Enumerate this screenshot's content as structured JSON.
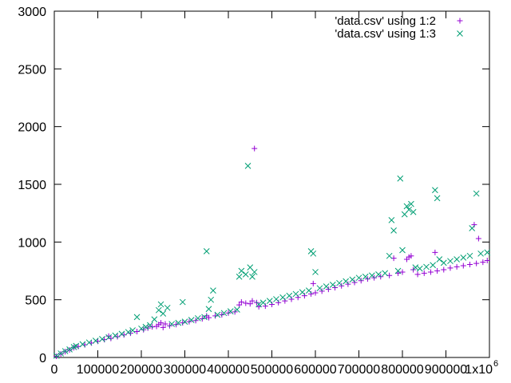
{
  "chart_data": {
    "type": "scatter",
    "title": "",
    "xlabel": "",
    "ylabel": "",
    "xlim": [
      0,
      1000000
    ],
    "ylim": [
      0,
      3000
    ],
    "grid": false,
    "legend_position": "top-right",
    "x_ticks": [
      0,
      100000,
      200000,
      300000,
      400000,
      500000,
      600000,
      700000,
      800000,
      900000,
      1000000
    ],
    "x_tick_labels": [
      "0",
      "100000",
      "200000",
      "300000",
      "400000",
      "500000",
      "600000",
      "700000",
      "800000",
      "900000",
      "1x10"
    ],
    "x_tick_label_last_exponent": "6",
    "y_ticks": [
      0,
      500,
      1000,
      1500,
      2000,
      2500,
      3000
    ],
    "y_tick_labels": [
      "0",
      "500",
      "1000",
      "1500",
      "2000",
      "2500",
      "3000"
    ],
    "series": [
      {
        "name": "'data.csv' using 1:2",
        "marker": "plus",
        "color": "#9400d3",
        "points": [
          [
            5000,
            10
          ],
          [
            15000,
            30
          ],
          [
            25000,
            50
          ],
          [
            35000,
            65
          ],
          [
            45000,
            85
          ],
          [
            55000,
            95
          ],
          [
            70000,
            110
          ],
          [
            85000,
            125
          ],
          [
            100000,
            140
          ],
          [
            115000,
            155
          ],
          [
            125000,
            185
          ],
          [
            130000,
            165
          ],
          [
            145000,
            180
          ],
          [
            160000,
            195
          ],
          [
            175000,
            210
          ],
          [
            190000,
            225
          ],
          [
            205000,
            240
          ],
          [
            215000,
            255
          ],
          [
            225000,
            265
          ],
          [
            235000,
            270
          ],
          [
            240000,
            285
          ],
          [
            245000,
            300
          ],
          [
            250000,
            260
          ],
          [
            255000,
            290
          ],
          [
            265000,
            275
          ],
          [
            280000,
            285
          ],
          [
            295000,
            300
          ],
          [
            310000,
            310
          ],
          [
            325000,
            320
          ],
          [
            340000,
            335
          ],
          [
            350000,
            360
          ],
          [
            355000,
            345
          ],
          [
            370000,
            360
          ],
          [
            385000,
            370
          ],
          [
            400000,
            385
          ],
          [
            415000,
            395
          ],
          [
            425000,
            455
          ],
          [
            430000,
            480
          ],
          [
            440000,
            470
          ],
          [
            450000,
            465
          ],
          [
            455000,
            490
          ],
          [
            460000,
            1810
          ],
          [
            465000,
            475
          ],
          [
            470000,
            440
          ],
          [
            485000,
            445
          ],
          [
            500000,
            460
          ],
          [
            515000,
            475
          ],
          [
            530000,
            490
          ],
          [
            545000,
            505
          ],
          [
            560000,
            520
          ],
          [
            575000,
            535
          ],
          [
            590000,
            550
          ],
          [
            595000,
            640
          ],
          [
            600000,
            560
          ],
          [
            615000,
            575
          ],
          [
            630000,
            590
          ],
          [
            645000,
            605
          ],
          [
            660000,
            620
          ],
          [
            675000,
            635
          ],
          [
            690000,
            650
          ],
          [
            705000,
            665
          ],
          [
            720000,
            680
          ],
          [
            735000,
            690
          ],
          [
            750000,
            700
          ],
          [
            770000,
            710
          ],
          [
            780000,
            860
          ],
          [
            790000,
            730
          ],
          [
            800000,
            740
          ],
          [
            810000,
            850
          ],
          [
            815000,
            870
          ],
          [
            820000,
            880
          ],
          [
            825000,
            760
          ],
          [
            835000,
            720
          ],
          [
            850000,
            730
          ],
          [
            865000,
            740
          ],
          [
            875000,
            910
          ],
          [
            880000,
            750
          ],
          [
            895000,
            760
          ],
          [
            910000,
            775
          ],
          [
            925000,
            785
          ],
          [
            940000,
            795
          ],
          [
            955000,
            805
          ],
          [
            965000,
            1150
          ],
          [
            970000,
            815
          ],
          [
            975000,
            1030
          ],
          [
            985000,
            825
          ],
          [
            995000,
            840
          ]
        ]
      },
      {
        "name": "'data.csv' using 1:3",
        "marker": "cross",
        "color": "#009e73",
        "points": [
          [
            5000,
            15
          ],
          [
            15000,
            35
          ],
          [
            25000,
            55
          ],
          [
            35000,
            70
          ],
          [
            45000,
            90
          ],
          [
            50000,
            100
          ],
          [
            65000,
            115
          ],
          [
            80000,
            130
          ],
          [
            95000,
            145
          ],
          [
            110000,
            160
          ],
          [
            125000,
            175
          ],
          [
            140000,
            190
          ],
          [
            155000,
            205
          ],
          [
            170000,
            220
          ],
          [
            180000,
            235
          ],
          [
            190000,
            350
          ],
          [
            200000,
            250
          ],
          [
            210000,
            265
          ],
          [
            220000,
            280
          ],
          [
            230000,
            330
          ],
          [
            240000,
            410
          ],
          [
            245000,
            460
          ],
          [
            250000,
            380
          ],
          [
            260000,
            430
          ],
          [
            270000,
            290
          ],
          [
            285000,
            300
          ],
          [
            295000,
            480
          ],
          [
            300000,
            310
          ],
          [
            315000,
            325
          ],
          [
            330000,
            340
          ],
          [
            345000,
            350
          ],
          [
            350000,
            920
          ],
          [
            355000,
            420
          ],
          [
            360000,
            500
          ],
          [
            365000,
            580
          ],
          [
            375000,
            370
          ],
          [
            390000,
            385
          ],
          [
            405000,
            400
          ],
          [
            420000,
            415
          ],
          [
            425000,
            700
          ],
          [
            430000,
            750
          ],
          [
            440000,
            720
          ],
          [
            445000,
            1660
          ],
          [
            450000,
            780
          ],
          [
            455000,
            700
          ],
          [
            460000,
            740
          ],
          [
            470000,
            460
          ],
          [
            480000,
            475
          ],
          [
            495000,
            490
          ],
          [
            510000,
            505
          ],
          [
            525000,
            520
          ],
          [
            540000,
            535
          ],
          [
            555000,
            550
          ],
          [
            570000,
            565
          ],
          [
            585000,
            580
          ],
          [
            590000,
            920
          ],
          [
            595000,
            900
          ],
          [
            600000,
            740
          ],
          [
            610000,
            600
          ],
          [
            625000,
            615
          ],
          [
            640000,
            630
          ],
          [
            655000,
            645
          ],
          [
            670000,
            660
          ],
          [
            685000,
            675
          ],
          [
            700000,
            690
          ],
          [
            715000,
            700
          ],
          [
            730000,
            710
          ],
          [
            745000,
            720
          ],
          [
            760000,
            730
          ],
          [
            770000,
            880
          ],
          [
            775000,
            1190
          ],
          [
            780000,
            1100
          ],
          [
            790000,
            750
          ],
          [
            795000,
            1550
          ],
          [
            800000,
            930
          ],
          [
            805000,
            1240
          ],
          [
            810000,
            1310
          ],
          [
            815000,
            1280
          ],
          [
            820000,
            1330
          ],
          [
            825000,
            1260
          ],
          [
            830000,
            780
          ],
          [
            840000,
            770
          ],
          [
            855000,
            785
          ],
          [
            870000,
            800
          ],
          [
            875000,
            1450
          ],
          [
            880000,
            1380
          ],
          [
            885000,
            850
          ],
          [
            895000,
            820
          ],
          [
            910000,
            835
          ],
          [
            925000,
            850
          ],
          [
            940000,
            865
          ],
          [
            955000,
            880
          ],
          [
            960000,
            1120
          ],
          [
            970000,
            1420
          ],
          [
            980000,
            900
          ],
          [
            995000,
            910
          ]
        ]
      }
    ]
  }
}
